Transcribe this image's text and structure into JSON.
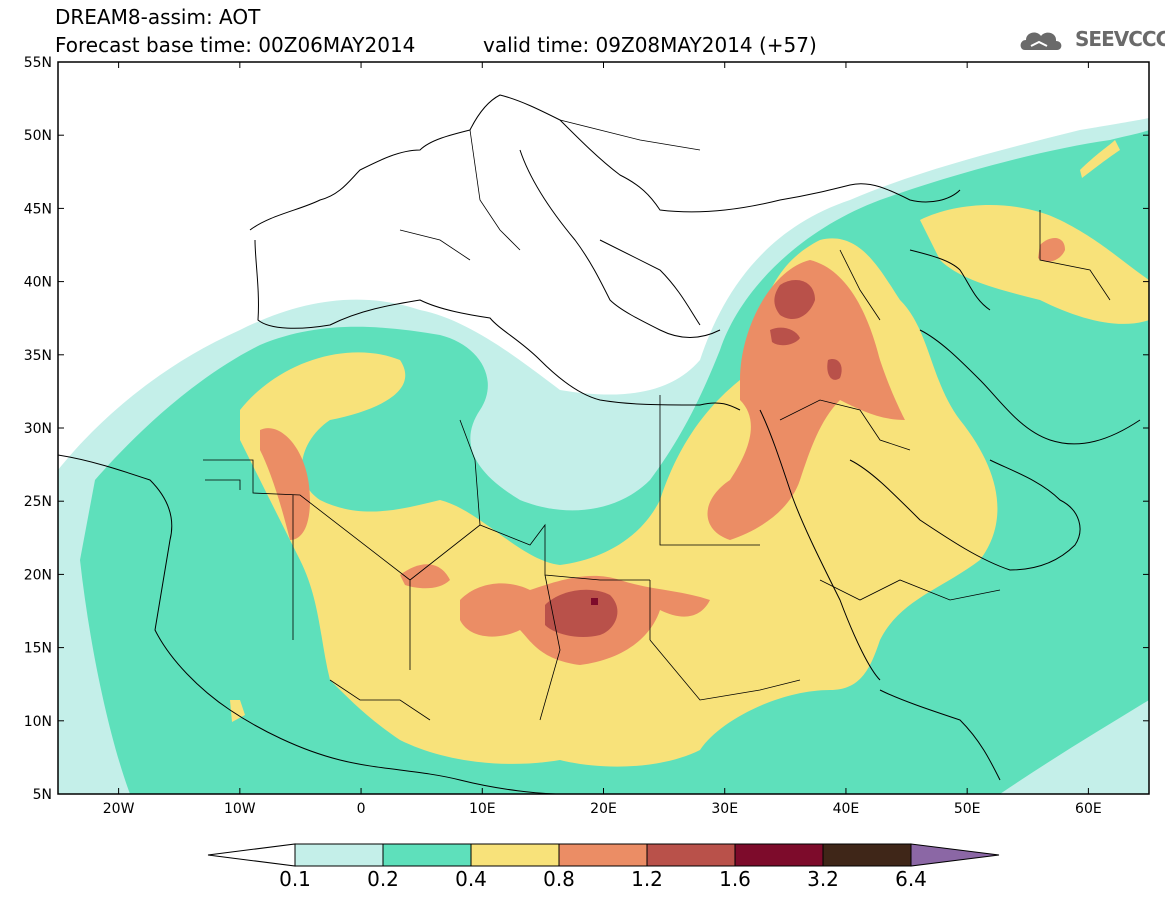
{
  "header": {
    "title_line1": "DREAM8-assim: AOT",
    "title_line2": "Forecast base time: 00Z06MAY2014",
    "valid_time": "valid time: 09Z08MAY2014 (+57)",
    "logo_text": "SEEVCCC"
  },
  "map": {
    "lat_labels": [
      "55N",
      "50N",
      "45N",
      "40N",
      "35N",
      "30N",
      "25N",
      "20N",
      "15N",
      "10N",
      "5N"
    ],
    "lon_labels": [
      "20W",
      "10W",
      "0",
      "10E",
      "20E",
      "30E",
      "40E",
      "50E",
      "60E"
    ],
    "extent": {
      "lon_min": -25,
      "lon_max": 65,
      "lat_min": 5,
      "lat_max": 55
    }
  },
  "colorbar": {
    "labels": [
      "0.1",
      "0.2",
      "0.4",
      "0.8",
      "1.2",
      "1.6",
      "3.2",
      "6.4"
    ],
    "colors": [
      "#c4efe9",
      "#5ee0bb",
      "#f8e27a",
      "#eb8d65",
      "#b9514a",
      "#7d0b2b",
      "#3f2618",
      "#8b67a5"
    ]
  },
  "colors": {
    "c01": "#c4efe9",
    "c02": "#5ee0bb",
    "c04": "#f8e27a",
    "c08": "#eb8d65",
    "c12": "#b9514a",
    "c16": "#7d0b2b"
  }
}
